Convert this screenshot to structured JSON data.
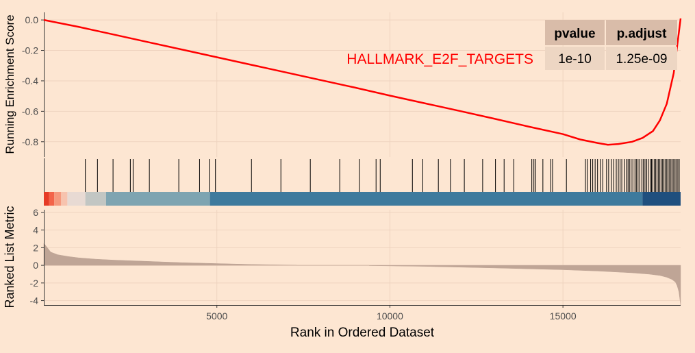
{
  "chart_data": [
    {
      "type": "line",
      "panel": "running-enrichment-score",
      "title": "",
      "ylabel": "Running Enrichment Score",
      "xlim": [
        0,
        18400
      ],
      "ylim": [
        -0.9,
        0.05
      ],
      "yticks": [
        0.0,
        -0.2,
        -0.4,
        -0.6,
        -0.8
      ],
      "ytick_labels": [
        "0.0",
        "-0.2",
        "-0.4",
        "-0.6",
        "-0.8"
      ],
      "grid": true,
      "series": [
        {
          "name": "HALLMARK_E2F_TARGETS",
          "color": "#FF0000",
          "x": [
            0,
            1000,
            2000,
            3000,
            4000,
            5000,
            6000,
            7000,
            8000,
            9000,
            10000,
            11000,
            12000,
            13000,
            14000,
            15000,
            15500,
            16000,
            16300,
            16600,
            17000,
            17300,
            17600,
            17800,
            18000,
            18200,
            18350,
            18400
          ],
          "y": [
            0.0,
            -0.045,
            -0.095,
            -0.145,
            -0.195,
            -0.245,
            -0.295,
            -0.345,
            -0.395,
            -0.445,
            -0.497,
            -0.547,
            -0.597,
            -0.648,
            -0.7,
            -0.75,
            -0.785,
            -0.808,
            -0.82,
            -0.815,
            -0.8,
            -0.775,
            -0.73,
            -0.66,
            -0.55,
            -0.35,
            -0.08,
            0.01
          ]
        }
      ],
      "table": {
        "columns": [
          "pvalue",
          "p.adjust"
        ],
        "rows": [
          [
            "1e-10",
            "1.25e-09"
          ]
        ],
        "header_fill": "#D9BCA9",
        "cell_fill": "#EDD6C3"
      }
    },
    {
      "type": "bar",
      "panel": "gene-set-hits",
      "hit_positions": [
        1200,
        1550,
        2000,
        2500,
        2580,
        3050,
        3900,
        4500,
        4780,
        4960,
        6000,
        6850,
        7700,
        8550,
        9120,
        9600,
        9720,
        10650,
        10950,
        11400,
        11750,
        12150,
        12680,
        13050,
        13300,
        13580,
        14100,
        14160,
        14210,
        14420,
        14650,
        14700,
        15100,
        15650,
        15700,
        15800,
        15860,
        15930,
        16000,
        16080,
        16150,
        16260,
        16320,
        16400,
        16470,
        16540,
        16600,
        16650,
        16700,
        16780,
        16830,
        16880,
        16920,
        16970,
        17020,
        17080,
        17120,
        17170,
        17220,
        17280,
        17320,
        17370,
        17420,
        17470,
        17520,
        17560,
        17600,
        17640,
        17680,
        17720,
        17760,
        17800,
        17840,
        17880,
        17920,
        17960,
        18000,
        18040,
        18080,
        18120,
        18160,
        18200,
        18240,
        18280,
        18320,
        18360
      ],
      "color_band": [
        {
          "start": 0,
          "end": 150,
          "color": "#E63B26"
        },
        {
          "start": 150,
          "end": 300,
          "color": "#F3644A"
        },
        {
          "start": 300,
          "end": 500,
          "color": "#F5997E"
        },
        {
          "start": 500,
          "end": 680,
          "color": "#F7C3AE"
        },
        {
          "start": 680,
          "end": 1200,
          "color": "#E8DAD3"
        },
        {
          "start": 1200,
          "end": 1800,
          "color": "#C2C6C3"
        },
        {
          "start": 1800,
          "end": 4800,
          "color": "#7EA4B1"
        },
        {
          "start": 4800,
          "end": 17300,
          "color": "#3E7A9D"
        },
        {
          "start": 17300,
          "end": 18400,
          "color": "#1F4F7E"
        }
      ]
    },
    {
      "type": "area",
      "panel": "ranked-list-metric",
      "ylabel": "Ranked List Metric",
      "xlabel": "Rank in Ordered Dataset",
      "xlim": [
        0,
        18400
      ],
      "ylim": [
        -4.5,
        6.3
      ],
      "xticks": [
        5000,
        10000,
        15000
      ],
      "xtick_labels": [
        "5000",
        "10000",
        "15000"
      ],
      "yticks": [
        6,
        4,
        2,
        0,
        -2,
        -4
      ],
      "ytick_labels": [
        "6",
        "4",
        "2",
        "0",
        "-2",
        "-4"
      ],
      "fill": "#BFA596",
      "x": [
        0,
        100,
        200,
        400,
        700,
        1000,
        1500,
        2000,
        3000,
        4000,
        5000,
        6000,
        7000,
        7300,
        7300,
        9400,
        9400,
        11000,
        13000,
        15000,
        16000,
        17000,
        17500,
        17800,
        18000,
        18150,
        18250,
        18300,
        18350,
        18400
      ],
      "y": [
        2.5,
        2.0,
        1.5,
        1.2,
        1.0,
        0.85,
        0.7,
        0.6,
        0.45,
        0.3,
        0.2,
        0.1,
        0.04,
        0.02,
        0.0,
        0.0,
        -0.03,
        -0.12,
        -0.3,
        -0.5,
        -0.65,
        -0.85,
        -1.0,
        -1.15,
        -1.35,
        -1.6,
        -1.9,
        -2.3,
        -3.0,
        -4.5
      ]
    }
  ]
}
